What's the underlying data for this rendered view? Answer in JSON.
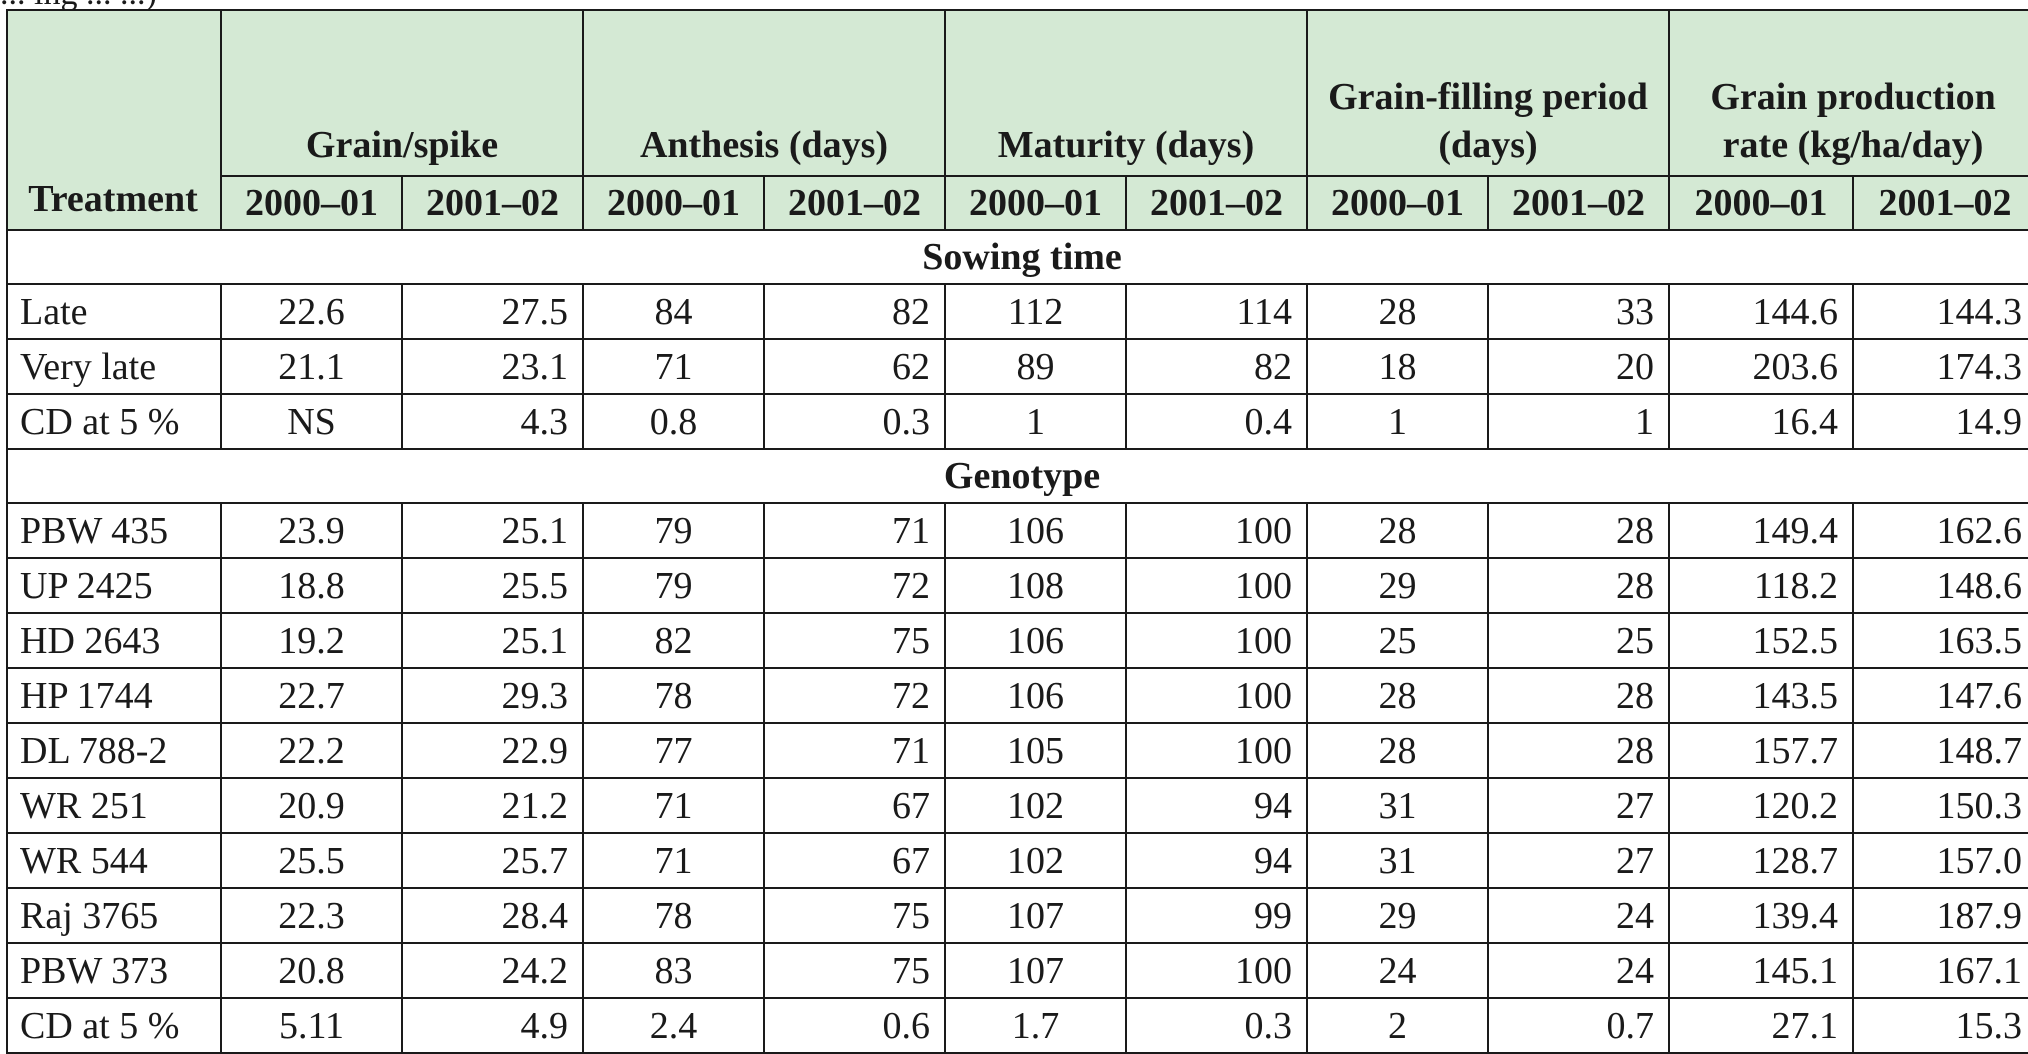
{
  "caption_fragment": "... ing ... ...)",
  "header": {
    "treatment": "Treatment",
    "groups": [
      "Grain/spike",
      "Anthesis (days)",
      "Maturity (days)",
      "Grain-filling period (days)",
      "Grain production rate (kg/ha/day)"
    ],
    "years": [
      "2000–01",
      "2001–02"
    ]
  },
  "sections": [
    {
      "title": "Sowing time",
      "rows": [
        {
          "name": "Late",
          "values": [
            "22.6",
            "27.5",
            "84",
            "82",
            "112",
            "114",
            "28",
            "33",
            "144.6",
            "144.3"
          ]
        },
        {
          "name": "Very late",
          "values": [
            "21.1",
            "23.1",
            "71",
            "62",
            "89",
            "82",
            "18",
            "20",
            "203.6",
            "174.3"
          ]
        },
        {
          "name": "CD at 5 %",
          "values": [
            "NS",
            "4.3",
            "0.8",
            "0.3",
            "1",
            "0.4",
            "1",
            "1",
            "16.4",
            "14.9"
          ]
        }
      ]
    },
    {
      "title": "Genotype",
      "rows": [
        {
          "name": "PBW 435",
          "values": [
            "23.9",
            "25.1",
            "79",
            "71",
            "106",
            "100",
            "28",
            "28",
            "149.4",
            "162.6"
          ]
        },
        {
          "name": "UP 2425",
          "values": [
            "18.8",
            "25.5",
            "79",
            "72",
            "108",
            "100",
            "29",
            "28",
            "118.2",
            "148.6"
          ]
        },
        {
          "name": "HD 2643",
          "values": [
            "19.2",
            "25.1",
            "82",
            "75",
            "106",
            "100",
            "25",
            "25",
            "152.5",
            "163.5"
          ]
        },
        {
          "name": "HP 1744",
          "values": [
            "22.7",
            "29.3",
            "78",
            "72",
            "106",
            "100",
            "28",
            "28",
            "143.5",
            "147.6"
          ]
        },
        {
          "name": "DL 788-2",
          "values": [
            "22.2",
            "22.9",
            "77",
            "71",
            "105",
            "100",
            "28",
            "28",
            "157.7",
            "148.7"
          ]
        },
        {
          "name": "WR 251",
          "values": [
            "20.9",
            "21.2",
            "71",
            "67",
            "102",
            "94",
            "31",
            "27",
            "120.2",
            "150.3"
          ]
        },
        {
          "name": "WR 544",
          "values": [
            "25.5",
            "25.7",
            "71",
            "67",
            "102",
            "94",
            "31",
            "27",
            "128.7",
            "157.0"
          ]
        },
        {
          "name": "Raj 3765",
          "values": [
            "22.3",
            "28.4",
            "78",
            "75",
            "107",
            "99",
            "29",
            "24",
            "139.4",
            "187.9"
          ]
        },
        {
          "name": "PBW 373",
          "values": [
            "20.8",
            "24.2",
            "83",
            "75",
            "107",
            "100",
            "24",
            "24",
            "145.1",
            "167.1"
          ]
        },
        {
          "name": "CD at 5 %",
          "values": [
            "5.11",
            "4.9",
            "2.4",
            "0.6",
            "1.7",
            "0.3",
            "2",
            "0.7",
            "27.1",
            "15.3"
          ]
        }
      ]
    }
  ],
  "colors": {
    "header_background": "#d4e9d4",
    "border": "#1a1a1a",
    "text": "#1a1a1a"
  }
}
